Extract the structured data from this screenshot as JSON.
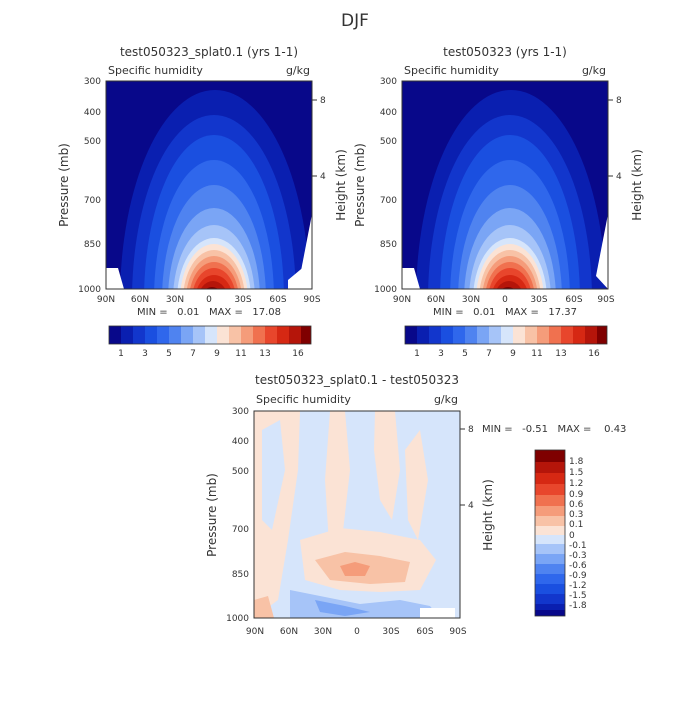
{
  "page": {
    "title": "DJF"
  },
  "chart_data": [
    {
      "type": "heatmap",
      "title": "test050323_splat0.1 (yrs 1-1)",
      "subtitle_left": "Specific humidity",
      "subtitle_right": "g/kg",
      "xlabel": "",
      "ylabel": "Pressure (mb)",
      "ylabel_right": "Height (km)",
      "x_ticks": [
        "90N",
        "60N",
        "30N",
        "0",
        "30S",
        "60S",
        "90S"
      ],
      "y_ticks": [
        "300",
        "400",
        "500",
        "700",
        "850",
        "1000"
      ],
      "y_ticks_right": [
        "8",
        "4"
      ],
      "stats": "MIN =   0.01   MAX =   17.08",
      "min": 0.01,
      "max": 17.08
    },
    {
      "type": "heatmap",
      "title": "test050323 (yrs 1-1)",
      "subtitle_left": "Specific humidity",
      "subtitle_right": "g/kg",
      "xlabel": "",
      "ylabel": "Pressure (mb)",
      "ylabel_right": "Height (km)",
      "x_ticks": [
        "90N",
        "60N",
        "30N",
        "0",
        "30S",
        "60S",
        "90S"
      ],
      "y_ticks": [
        "300",
        "400",
        "500",
        "700",
        "850",
        "1000"
      ],
      "y_ticks_right": [
        "8",
        "4"
      ],
      "stats": "MIN =   0.01   MAX =   17.37",
      "min": 0.01,
      "max": 17.37
    },
    {
      "type": "heatmap",
      "title": "test050323_splat0.1 - test050323",
      "subtitle_left": "Specific humidity",
      "subtitle_right": "g/kg",
      "xlabel": "",
      "ylabel": "Pressure (mb)",
      "ylabel_right": "Height (km)",
      "x_ticks": [
        "90N",
        "60N",
        "30N",
        "0",
        "30S",
        "60S",
        "90S"
      ],
      "y_ticks": [
        "300",
        "400",
        "500",
        "700",
        "850",
        "1000"
      ],
      "y_ticks_right": [
        "8",
        "4"
      ],
      "stats": "MIN =   -0.51   MAX =    0.43",
      "min": -0.51,
      "max": 0.43
    }
  ],
  "colorbar_top": {
    "colors": [
      "#08088a",
      "#0a1fb0",
      "#1236cc",
      "#1a4fe0",
      "#2f67ec",
      "#4f83f0",
      "#7aa5f5",
      "#a6c4f8",
      "#d6e5fb",
      "#fbe3d5",
      "#f8c2a6",
      "#f59c7a",
      "#f0714f",
      "#e8462c",
      "#d62813",
      "#b5150a",
      "#7f0000"
    ],
    "labels": [
      "1",
      "3",
      "5",
      "7",
      "9",
      "11",
      "13",
      "16"
    ]
  },
  "colorbar_diff": {
    "colors": [
      "#08088a",
      "#0a1fb0",
      "#1236cc",
      "#1a4fe0",
      "#2f67ec",
      "#4f83f0",
      "#7aa5f5",
      "#a6c4f8",
      "#d6e5fb",
      "#fbe3d5",
      "#f8c2a6",
      "#f59c7a",
      "#f0714f",
      "#e8462c",
      "#d62813",
      "#b5150a",
      "#7f0000"
    ],
    "labels": [
      "1.8",
      "1.5",
      "1.2",
      "0.9",
      "0.6",
      "0.3",
      "0.1",
      "0",
      "-0.1",
      "-0.3",
      "-0.6",
      "-0.9",
      "-1.2",
      "-1.5",
      "-1.8"
    ]
  }
}
